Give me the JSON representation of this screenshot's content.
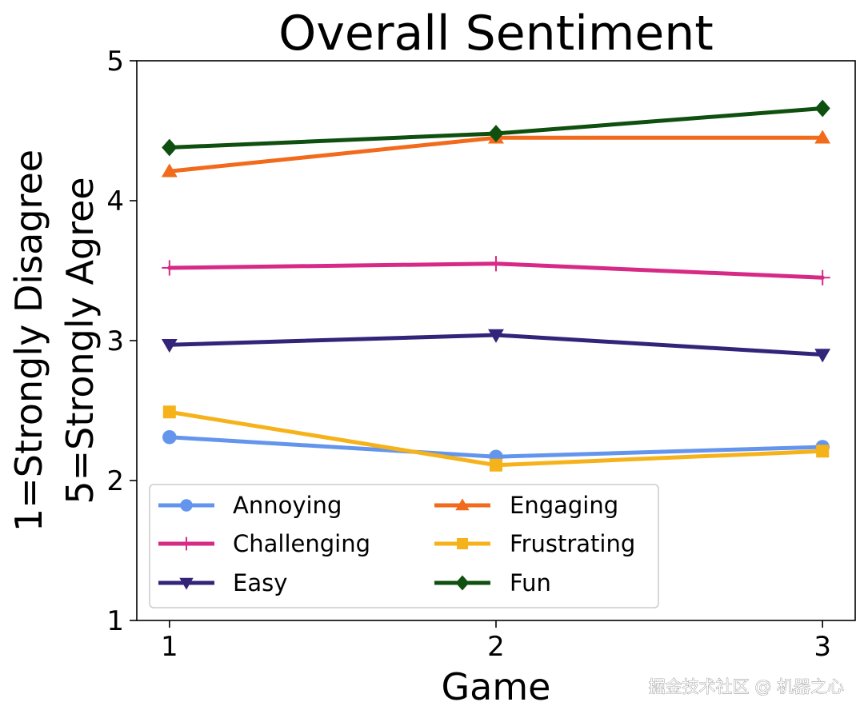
{
  "chart_data": {
    "type": "line",
    "title": "Overall Sentiment",
    "xlabel": "Game",
    "ylabel_lines": [
      "1=Strongly Disagree",
      "5=Strongly Agree"
    ],
    "x": [
      1,
      2,
      3
    ],
    "x_ticks": [
      "1",
      "2",
      "3"
    ],
    "y_ticks": [
      "1",
      "2",
      "3",
      "4",
      "5"
    ],
    "ylim": [
      1,
      5
    ],
    "xlim": [
      0.9,
      3.1
    ],
    "grid": false,
    "legend_position": "lower-left",
    "series": [
      {
        "name": "Annoying",
        "values": [
          2.31,
          2.17,
          2.24
        ],
        "color": "#6495ED",
        "marker": "circle"
      },
      {
        "name": "Challenging",
        "values": [
          3.52,
          3.55,
          3.45
        ],
        "color": "#D62A86",
        "marker": "plus"
      },
      {
        "name": "Easy",
        "values": [
          2.97,
          3.04,
          2.9
        ],
        "color": "#33247A",
        "marker": "triangle-down"
      },
      {
        "name": "Engaging",
        "values": [
          4.21,
          4.45,
          4.45
        ],
        "color": "#F26A1B",
        "marker": "triangle-up"
      },
      {
        "name": "Frustrating",
        "values": [
          2.49,
          2.11,
          2.21
        ],
        "color": "#F6B21A",
        "marker": "square"
      },
      {
        "name": "Fun",
        "values": [
          4.38,
          4.48,
          4.66
        ],
        "color": "#0F4F0F",
        "marker": "diamond"
      }
    ]
  },
  "watermark": "掘金技术社区 @ 机器之心"
}
